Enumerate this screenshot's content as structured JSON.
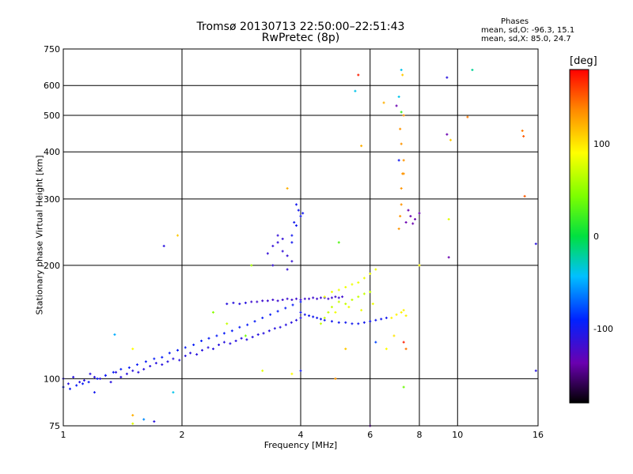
{
  "title_line1": "Tromsø 20130713 22:50:00–22:51:43",
  "title_line2": "RwPretec (8p)",
  "stats": {
    "heading": "Phases",
    "line_o": "mean, sd,O: -96.3, 15.1",
    "line_x": "mean, sd,X:  85.0, 24.7"
  },
  "colorbar": {
    "unit_label": "[deg]",
    "range": [
      -180,
      180
    ],
    "ticks": [
      {
        "label": "100",
        "value": 100
      },
      {
        "label": "0",
        "value": 0
      },
      {
        "label": "-100",
        "value": -100
      }
    ]
  },
  "chart_data": {
    "type": "scatter",
    "title": "Tromsø 20130713 22:50:00–22:51:43",
    "subtitle": "RwPretec (8p)",
    "xlabel": "Frequency [MHz]",
    "ylabel": "Stationary phase Virtual Height [km]",
    "xscale": "log",
    "yscale": "log",
    "xlim": [
      1,
      16
    ],
    "ylim": [
      75,
      750
    ],
    "x_ticks": [
      {
        "label": "1",
        "value": 1
      },
      {
        "label": "2",
        "value": 2
      },
      {
        "label": "4",
        "value": 4
      },
      {
        "label": "6",
        "value": 6
      },
      {
        "label": "8",
        "value": 8
      },
      {
        "label": "10",
        "value": 10
      },
      {
        "label": "16",
        "value": 16
      }
    ],
    "y_ticks": [
      {
        "label": "75",
        "value": 75
      },
      {
        "label": "100",
        "value": 100
      },
      {
        "label": "200",
        "value": 200
      },
      {
        "label": "300",
        "value": 300
      },
      {
        "label": "400",
        "value": 400
      },
      {
        "label": "500",
        "value": 500
      },
      {
        "label": "600",
        "value": 600
      },
      {
        "label": "750",
        "value": 750
      }
    ],
    "grid": true,
    "color_by": "phase_deg",
    "point_series": [
      {
        "x": [
          1.0,
          1.03,
          1.06,
          1.1,
          1.13,
          1.17,
          1.2,
          1.24,
          1.28,
          1.32,
          1.36,
          1.4,
          1.45,
          1.5,
          1.55,
          1.6,
          1.66,
          1.72,
          1.78,
          1.84,
          1.9,
          1.97,
          2.04,
          2.1,
          2.18,
          2.25,
          2.33,
          2.4,
          2.48,
          2.56,
          2.65,
          2.74,
          2.83,
          2.92,
          3.02,
          3.12,
          3.22,
          3.33,
          3.44,
          3.55,
          3.67,
          3.79,
          3.9,
          4.0
        ],
        "y": [
          100,
          97,
          101,
          98,
          99,
          103,
          101,
          100,
          102,
          98,
          104,
          101,
          103,
          105,
          104,
          106,
          108,
          110,
          109,
          111,
          113,
          112,
          115,
          117,
          116,
          119,
          121,
          120,
          123,
          125,
          124,
          126,
          128,
          127,
          129,
          131,
          132,
          134,
          136,
          137,
          139,
          141,
          143,
          145
        ],
        "phase": -110
      },
      {
        "x": [
          1.0,
          1.04,
          1.08,
          1.12,
          1.16,
          1.22,
          1.28,
          1.34,
          1.4,
          1.47,
          1.54,
          1.62,
          1.7,
          1.78,
          1.86,
          1.95,
          2.04,
          2.14,
          2.24,
          2.34,
          2.45,
          2.56,
          2.68,
          2.8,
          2.93,
          3.06,
          3.2,
          3.35,
          3.5,
          3.66,
          3.82,
          4.0
        ],
        "y": [
          95,
          94,
          96,
          97,
          98,
          100,
          102,
          104,
          106,
          107,
          109,
          111,
          113,
          114,
          117,
          119,
          121,
          123,
          126,
          128,
          130,
          132,
          134,
          137,
          139,
          142,
          145,
          148,
          151,
          154,
          157,
          160
        ],
        "phase": -95
      },
      {
        "x": [
          3.0,
          3.1,
          3.2,
          3.3,
          3.4,
          3.5,
          3.6,
          3.7,
          3.8,
          3.9,
          4.0,
          4.1,
          4.2,
          4.3,
          4.4,
          4.5,
          4.6,
          4.7,
          4.8,
          4.9,
          5.0,
          5.1
        ],
        "y": [
          160,
          160,
          161,
          161,
          162,
          161,
          162,
          163,
          162,
          163,
          162,
          163,
          163,
          164,
          163,
          164,
          164,
          163,
          164,
          165,
          164,
          165
        ],
        "phase": -120
      },
      {
        "x": [
          2.6,
          2.7,
          2.8,
          2.9
        ],
        "y": [
          158,
          159,
          158,
          159
        ],
        "phase": -110
      },
      {
        "x": [
          4.0,
          4.1,
          4.2,
          4.3,
          4.4,
          4.5,
          4.6,
          4.8,
          5.0,
          5.2,
          5.4,
          5.6,
          5.8,
          6.0,
          6.2,
          6.4,
          6.6
        ],
        "y": [
          150,
          148,
          147,
          146,
          145,
          144,
          143,
          142,
          141,
          141,
          140,
          140,
          141,
          142,
          143,
          144,
          145
        ],
        "phase": -100
      },
      {
        "x": [
          3.3,
          3.4,
          3.5,
          3.6,
          3.7,
          3.8,
          3.5,
          3.6,
          3.4,
          3.7
        ],
        "y": [
          215,
          225,
          230,
          218,
          212,
          205,
          240,
          235,
          200,
          195
        ],
        "phase": -115
      },
      {
        "x": [
          3.8,
          3.9,
          4.0,
          3.95,
          3.85,
          3.9,
          4.05,
          3.8
        ],
        "y": [
          240,
          255,
          270,
          280,
          260,
          290,
          275,
          230
        ],
        "phase": -100
      },
      {
        "x": [
          4.6,
          4.8,
          5.0,
          5.2,
          5.4,
          5.6,
          5.8,
          6.0,
          6.2,
          4.9,
          5.3,
          5.7,
          6.1
        ],
        "y": [
          165,
          170,
          172,
          175,
          178,
          180,
          185,
          190,
          195,
          150,
          155,
          152,
          158
        ],
        "phase": 85
      },
      {
        "x": [
          4.5,
          4.6,
          4.7,
          4.8,
          5.0,
          5.2,
          5.4,
          5.6,
          5.8,
          6.0
        ],
        "y": [
          140,
          145,
          150,
          155,
          160,
          158,
          162,
          165,
          168,
          170
        ],
        "phase": 70
      },
      {
        "x": [
          7.1,
          7.15,
          7.2,
          7.2,
          7.25,
          7.3,
          7.2,
          7.15,
          7.3
        ],
        "y": [
          250,
          270,
          290,
          320,
          350,
          380,
          420,
          460,
          500
        ],
        "phase": 130
      },
      {
        "x": [
          7.4,
          7.6,
          7.8,
          8.0,
          7.5,
          7.7
        ],
        "y": [
          260,
          270,
          265,
          275,
          280,
          258
        ],
        "phase": -140
      },
      {
        "x": [
          6.8,
          7.0,
          7.2,
          7.3,
          7.4
        ],
        "y": [
          145,
          148,
          150,
          152,
          147
        ],
        "phase": 95
      }
    ],
    "point_scatter": [
      {
        "x": 5.6,
        "y": 640,
        "phase": 170
      },
      {
        "x": 5.5,
        "y": 580,
        "phase": -40
      },
      {
        "x": 7.2,
        "y": 660,
        "phase": -40
      },
      {
        "x": 7.25,
        "y": 640,
        "phase": 110
      },
      {
        "x": 9.4,
        "y": 630,
        "phase": -110
      },
      {
        "x": 10.9,
        "y": 660,
        "phase": -20
      },
      {
        "x": 6.5,
        "y": 540,
        "phase": 120
      },
      {
        "x": 7.1,
        "y": 560,
        "phase": -40
      },
      {
        "x": 7.0,
        "y": 530,
        "phase": -140
      },
      {
        "x": 7.2,
        "y": 510,
        "phase": 20
      },
      {
        "x": 10.6,
        "y": 495,
        "phase": 140
      },
      {
        "x": 9.4,
        "y": 445,
        "phase": -140
      },
      {
        "x": 9.6,
        "y": 430,
        "phase": 110
      },
      {
        "x": 14.6,
        "y": 455,
        "phase": 140
      },
      {
        "x": 14.7,
        "y": 440,
        "phase": 150
      },
      {
        "x": 5.7,
        "y": 415,
        "phase": 120
      },
      {
        "x": 7.1,
        "y": 380,
        "phase": -100
      },
      {
        "x": 7.3,
        "y": 350,
        "phase": 130
      },
      {
        "x": 14.8,
        "y": 305,
        "phase": 150
      },
      {
        "x": 3.7,
        "y": 320,
        "phase": 120
      },
      {
        "x": 9.5,
        "y": 265,
        "phase": 80
      },
      {
        "x": 9.5,
        "y": 210,
        "phase": -140
      },
      {
        "x": 15.8,
        "y": 228,
        "phase": -110
      },
      {
        "x": 15.8,
        "y": 105,
        "phase": -110
      },
      {
        "x": 1.8,
        "y": 225,
        "phase": -110
      },
      {
        "x": 1.95,
        "y": 240,
        "phase": 110
      },
      {
        "x": 1.35,
        "y": 131,
        "phase": -50
      },
      {
        "x": 1.5,
        "y": 120,
        "phase": 90
      },
      {
        "x": 1.5,
        "y": 80,
        "phase": 120
      },
      {
        "x": 1.5,
        "y": 76,
        "phase": 80
      },
      {
        "x": 1.6,
        "y": 78,
        "phase": -60
      },
      {
        "x": 1.7,
        "y": 77,
        "phase": -110
      },
      {
        "x": 1.9,
        "y": 92,
        "phase": -40
      },
      {
        "x": 1.2,
        "y": 92,
        "phase": -100
      },
      {
        "x": 7.3,
        "y": 95,
        "phase": 40
      },
      {
        "x": 6.0,
        "y": 75,
        "phase": -140
      },
      {
        "x": 4.0,
        "y": 105,
        "phase": -100
      },
      {
        "x": 3.8,
        "y": 103,
        "phase": 90
      },
      {
        "x": 3.2,
        "y": 105,
        "phase": 80
      },
      {
        "x": 6.2,
        "y": 125,
        "phase": -80
      },
      {
        "x": 7.3,
        "y": 125,
        "phase": 170
      },
      {
        "x": 7.4,
        "y": 120,
        "phase": 140
      },
      {
        "x": 5.2,
        "y": 120,
        "phase": 110
      },
      {
        "x": 6.6,
        "y": 120,
        "phase": 90
      },
      {
        "x": 4.9,
        "y": 100,
        "phase": 130
      },
      {
        "x": 5.0,
        "y": 230,
        "phase": 30
      },
      {
        "x": 3.0,
        "y": 200,
        "phase": 60
      },
      {
        "x": 2.6,
        "y": 140,
        "phase": 70
      },
      {
        "x": 2.4,
        "y": 150,
        "phase": 50
      },
      {
        "x": 2.9,
        "y": 130,
        "phase": 40
      },
      {
        "x": 8.0,
        "y": 200,
        "phase": 90
      },
      {
        "x": 6.9,
        "y": 130,
        "phase": 100
      }
    ]
  }
}
